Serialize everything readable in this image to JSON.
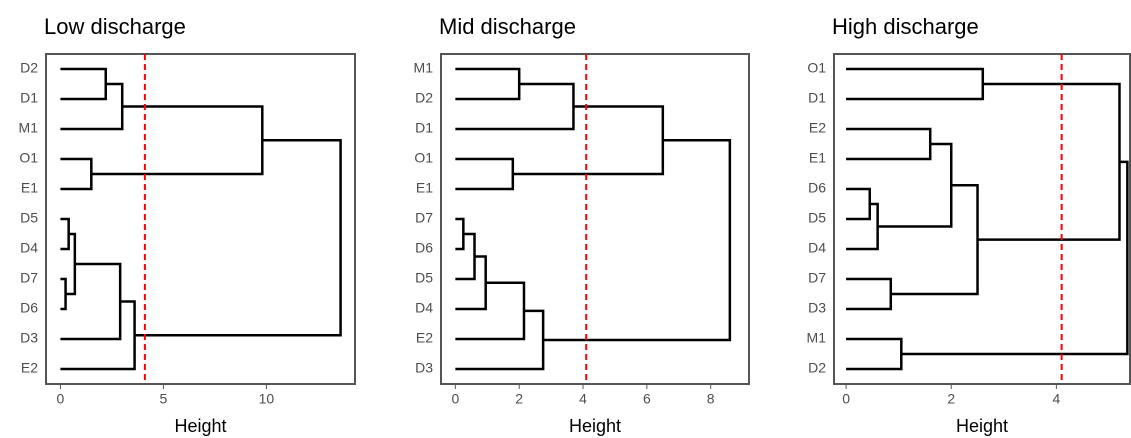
{
  "chart_data": [
    {
      "type": "dendrogram",
      "title": "Low discharge",
      "xlabel": "Height",
      "leaves": [
        "D2",
        "D1",
        "M1",
        "O1",
        "E1",
        "D5",
        "D4",
        "D7",
        "D6",
        "D3",
        "E2"
      ],
      "merges": [
        [
          0,
          1,
          2.2
        ],
        [
          11,
          2,
          3.0
        ],
        [
          3,
          4,
          1.5
        ],
        [
          12,
          13,
          9.8
        ],
        [
          5,
          6,
          0.4
        ],
        [
          7,
          8,
          0.25
        ],
        [
          15,
          16,
          0.7
        ],
        [
          17,
          9,
          2.9
        ],
        [
          18,
          10,
          3.6
        ],
        [
          14,
          19,
          13.6
        ]
      ],
      "xlim": [
        -0.7,
        14.3
      ],
      "xticks": [
        0,
        5,
        10
      ],
      "cutoff": 4.1,
      "line_color": "#000000",
      "cutoff_color": "#ff0000"
    },
    {
      "type": "dendrogram",
      "title": "Mid discharge",
      "xlabel": "Height",
      "leaves": [
        "M1",
        "D2",
        "D1",
        "O1",
        "E1",
        "D7",
        "D6",
        "D5",
        "D4",
        "E2",
        "D3"
      ],
      "merges": [
        [
          0,
          1,
          2.0
        ],
        [
          11,
          2,
          3.7
        ],
        [
          3,
          4,
          1.8
        ],
        [
          12,
          13,
          6.5
        ],
        [
          5,
          6,
          0.25
        ],
        [
          15,
          7,
          0.6
        ],
        [
          16,
          8,
          0.95
        ],
        [
          17,
          9,
          2.15
        ],
        [
          18,
          10,
          2.75
        ],
        [
          14,
          19,
          8.6
        ]
      ],
      "xlim": [
        -0.45,
        9.2
      ],
      "xticks": [
        0,
        2,
        4,
        6,
        8
      ],
      "cutoff": 4.1,
      "line_color": "#000000",
      "cutoff_color": "#ff0000"
    },
    {
      "type": "dendrogram",
      "title": "High discharge",
      "xlabel": "Height",
      "leaves": [
        "O1",
        "D1",
        "E2",
        "E1",
        "D6",
        "D5",
        "D4",
        "D7",
        "D3",
        "M1",
        "D2"
      ],
      "merges": [
        [
          0,
          1,
          2.6
        ],
        [
          2,
          3,
          1.6
        ],
        [
          4,
          5,
          0.45
        ],
        [
          13,
          6,
          0.6
        ],
        [
          12,
          14,
          2.0
        ],
        [
          7,
          8,
          0.85
        ],
        [
          15,
          16,
          2.5
        ],
        [
          11,
          17,
          5.2
        ],
        [
          9,
          10,
          1.05
        ],
        [
          18,
          19,
          5.35
        ]
      ],
      "xlim": [
        -0.23,
        5.4
      ],
      "xticks": [
        0,
        2,
        4
      ],
      "cutoff": 4.1,
      "line_color": "#000000",
      "cutoff_color": "#ff0000"
    }
  ]
}
